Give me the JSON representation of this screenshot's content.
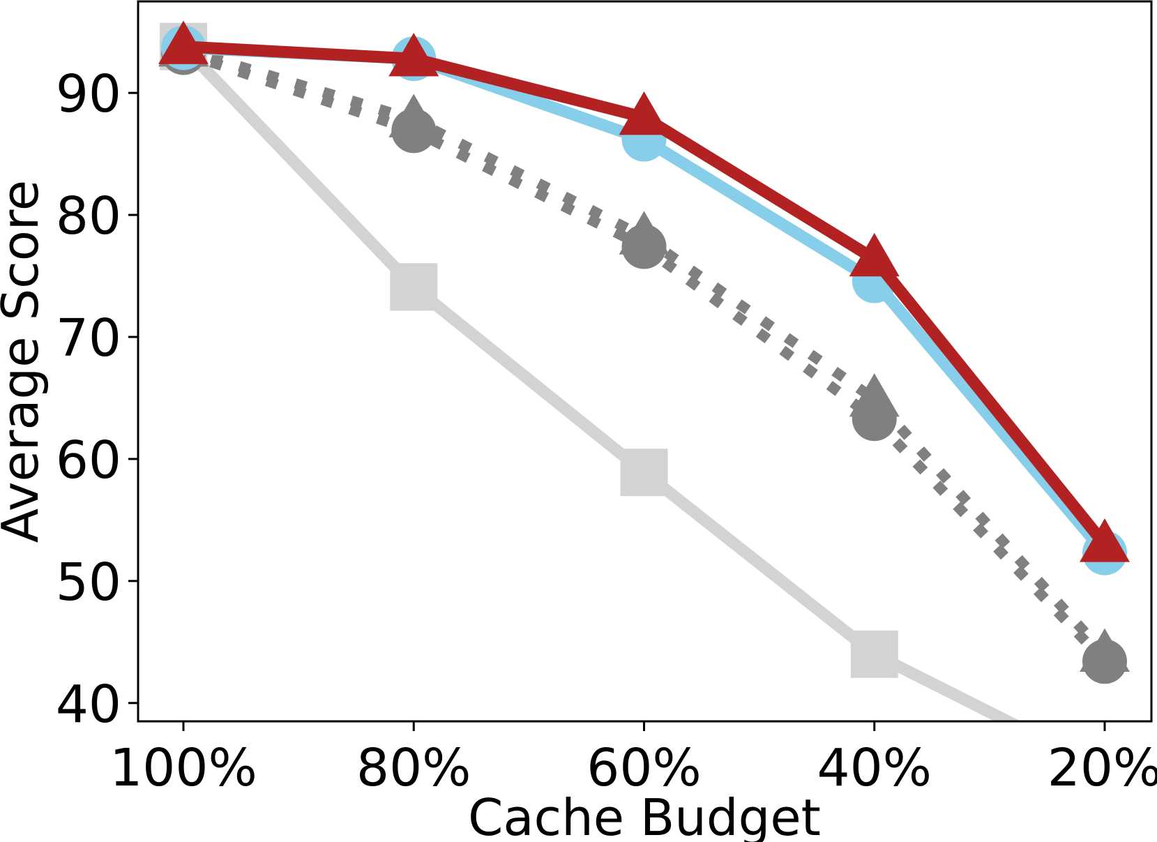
{
  "chart_data": {
    "type": "line",
    "xlabel": "Cache Budget",
    "ylabel": "Average Score",
    "categories": [
      "100%",
      "80%",
      "60%",
      "40%",
      "20%"
    ],
    "yticks": [
      40,
      50,
      60,
      70,
      80,
      90
    ],
    "ylim": [
      38.5,
      97.5
    ],
    "grid": false,
    "legend": "none",
    "series": [
      {
        "color": "#d3d3d3",
        "marker": "square",
        "linestyle": "solid",
        "values": [
          93.8,
          74.1,
          58.9,
          44.0,
          34.5
        ]
      },
      {
        "color": "#808080",
        "marker": "triangle",
        "linestyle": "dotted",
        "values": [
          93.6,
          87.8,
          78.2,
          64.9,
          44.0
        ]
      },
      {
        "color": "#808080",
        "marker": "circle",
        "linestyle": "dotted",
        "values": [
          93.3,
          86.9,
          77.4,
          63.3,
          43.4
        ]
      },
      {
        "color": "#87ceeb",
        "marker": "circle",
        "linestyle": "solid",
        "values": [
          93.7,
          92.8,
          86.2,
          74.6,
          52.3
        ]
      },
      {
        "color": "#b22222",
        "marker": "triangle",
        "linestyle": "solid",
        "values": [
          93.8,
          92.8,
          88.0,
          76.4,
          53.0
        ]
      }
    ]
  }
}
